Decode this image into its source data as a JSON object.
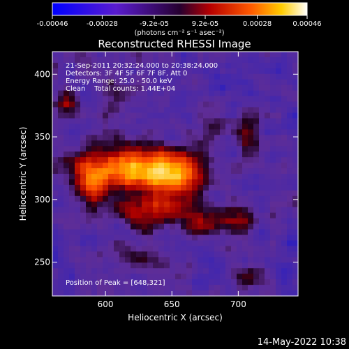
{
  "colorbar": {
    "ticks": [
      "-0.00046",
      "-0.00028",
      "-9.2e-05",
      "9.2e-05",
      "0.00028",
      "0.00046"
    ],
    "tick_values": [
      -0.00046,
      -0.00028,
      -9.2e-05,
      9.2e-05,
      0.00028,
      0.00046
    ],
    "range": [
      -0.00046,
      0.00046
    ],
    "units_label": "(photons cm⁻² s⁻¹ asec⁻²)"
  },
  "chart_data": {
    "type": "heatmap",
    "title": "Reconstructed RHESSI Image",
    "xlabel": "Heliocentric X (arcsec)",
    "ylabel": "Heliocentric Y (arcsec)",
    "xlim": [
      560,
      745
    ],
    "ylim": [
      223,
      418
    ],
    "xticks": [
      600,
      650,
      700
    ],
    "yticks": [
      250,
      300,
      350,
      400
    ],
    "colormap": "RHESSI blue-purple-red-orange-yellow-white",
    "peak": [
      648,
      321
    ],
    "annotations": [
      "21-Sep-2011 20:32:24.000 to 20:38:24.000",
      "Detectors: 3F 4F 5F 6F 7F 8F, Att 0",
      "Energy Range: 25.0 - 50.0 keV",
      "Clean    Total counts: 1.44E+04",
      "Position of Peak = [648,321]"
    ]
  },
  "footer": {
    "timestamp": "14-May-2022 10:38"
  }
}
